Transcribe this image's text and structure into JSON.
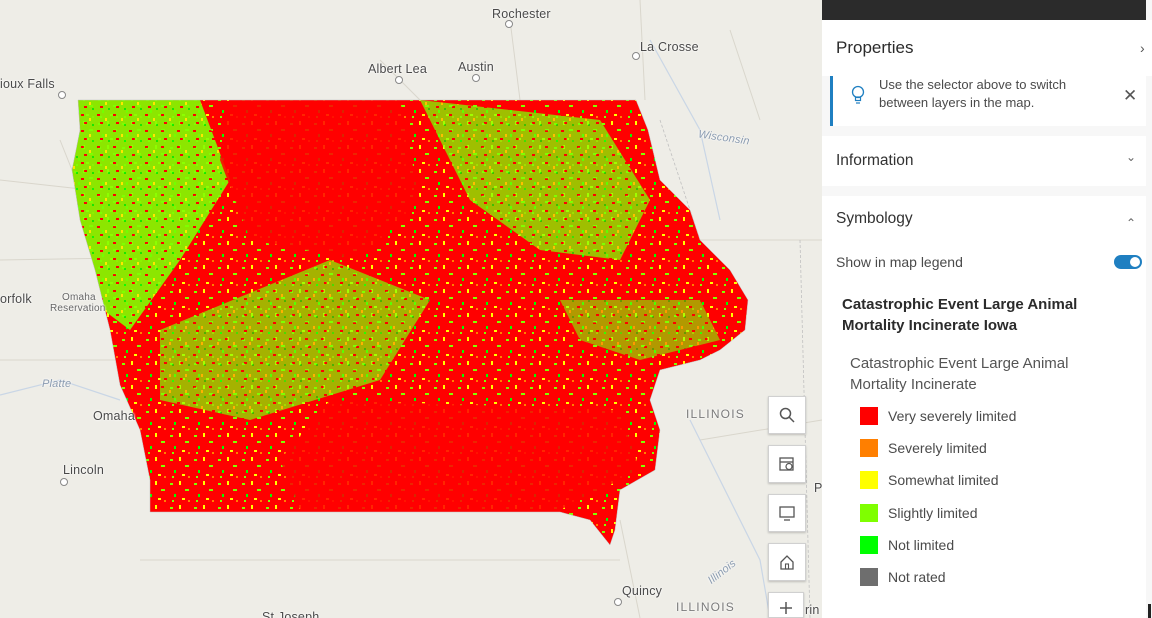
{
  "map": {
    "places": {
      "rochester": "Rochester",
      "la_crosse": "La Crosse",
      "albert_lea": "Albert Lea",
      "austin": "Austin",
      "sioux_falls": "ioux Falls",
      "wisconsin": "Wisconsin",
      "norfolk": "orfolk",
      "omaha_res_1": "Omaha",
      "omaha_res_2": "Reservation",
      "platte": "Platte",
      "omaha": "Omaha",
      "lincoln": "Lincoln",
      "illinois_1": "ILLINOIS",
      "illinois_2": "ILLINOIS",
      "illinois_river": "Illinois",
      "quincy": "Quincy",
      "st_joseph": "St Joseph",
      "edge_p": "P",
      "edge_rin": "rin"
    },
    "colors": {
      "very_severe": "#ff0000",
      "severe": "#ff8000",
      "somewhat": "#ffff00",
      "slightly": "#80ff00",
      "not_limited": "#00ff00",
      "not_rated": "#6e6e6e"
    },
    "buttons": [
      "search-icon",
      "basemap-gallery-icon",
      "monitor-icon",
      "home-icon",
      "zoom-in-icon"
    ]
  },
  "panel": {
    "title": "Properties",
    "chevron": "›",
    "tip_text": "Use the selector above to switch between layers in the map.",
    "tip_close": "✕",
    "information_label": "Information",
    "information_chevron": "⌄",
    "symbology_label": "Symbology",
    "symbology_chevron": "⌃",
    "show_in_legend_label": "Show in map legend",
    "show_in_legend_on": true,
    "layer_title": "Catastrophic Event Large Animal Mortality Incinerate Iowa",
    "layer_subtitle": "Catastrophic Event Large Animal Mortality Incinerate",
    "legend": [
      {
        "label": "Very severely limited",
        "color": "#ff0000"
      },
      {
        "label": "Severely limited",
        "color": "#ff7f00"
      },
      {
        "label": "Somewhat limited",
        "color": "#ffff00"
      },
      {
        "label": "Slightly limited",
        "color": "#7fff00"
      },
      {
        "label": "Not limited",
        "color": "#00ff00"
      },
      {
        "label": "Not rated",
        "color": "#6e6e6e"
      }
    ]
  }
}
